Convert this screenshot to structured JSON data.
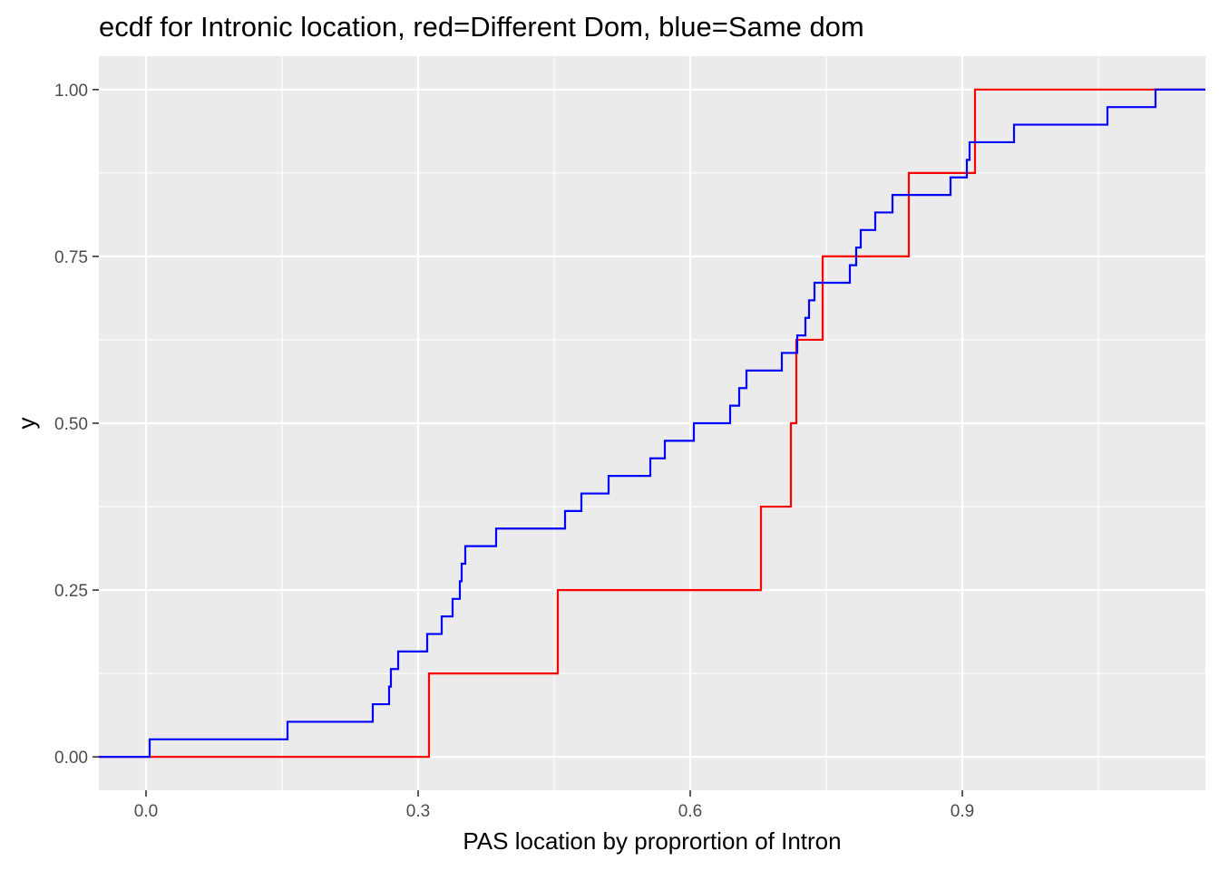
{
  "chart_data": {
    "type": "line",
    "step": true,
    "title": "ecdf for Intronic location, red=Different Dom, blue=Same dom",
    "xlabel": "PAS location by proprortion of Intron",
    "ylabel": "y",
    "xlim": [
      -0.052,
      1.168
    ],
    "ylim": [
      -0.05,
      1.05
    ],
    "x_ticks": [
      0.0,
      0.3,
      0.6,
      0.9
    ],
    "x_tick_labels": [
      "0.0",
      "0.3",
      "0.6",
      "0.9"
    ],
    "x_minor_ticks": [
      0.15,
      0.45,
      0.75,
      1.05
    ],
    "y_ticks": [
      0.0,
      0.25,
      0.5,
      0.75,
      1.0
    ],
    "y_tick_labels": [
      "0.00",
      "0.25",
      "0.50",
      "0.75",
      "1.00"
    ],
    "y_minor_ticks": [
      0.125,
      0.375,
      0.625,
      0.875
    ],
    "panel_color": "#ebebeb",
    "grid": true,
    "legend": "none",
    "series": [
      {
        "color": "#ff0000",
        "x": [
          0.312,
          0.454,
          0.678,
          0.711,
          0.717,
          0.746,
          0.841,
          0.914
        ],
        "y": [
          0.125,
          0.25,
          0.375,
          0.5,
          0.625,
          0.75,
          0.875,
          1.0
        ]
      },
      {
        "color": "#0000ff",
        "x": [
          0.004,
          0.156,
          0.25,
          0.268,
          0.27,
          0.278,
          0.31,
          0.326,
          0.338,
          0.346,
          0.348,
          0.352,
          0.386,
          0.462,
          0.48,
          0.51,
          0.556,
          0.572,
          0.604,
          0.644,
          0.654,
          0.662,
          0.701,
          0.718,
          0.727,
          0.731,
          0.737,
          0.776,
          0.783,
          0.788,
          0.804,
          0.823,
          0.887,
          0.905,
          0.908,
          0.957,
          1.06,
          1.113
        ],
        "y": [
          0.0263,
          0.0526,
          0.0789,
          0.1053,
          0.1316,
          0.1579,
          0.1842,
          0.2105,
          0.2368,
          0.2632,
          0.2895,
          0.3158,
          0.3421,
          0.3684,
          0.3947,
          0.4211,
          0.4474,
          0.4737,
          0.5,
          0.5263,
          0.5526,
          0.5789,
          0.6053,
          0.6316,
          0.6579,
          0.6842,
          0.7105,
          0.7368,
          0.7632,
          0.7895,
          0.8158,
          0.8421,
          0.8684,
          0.8947,
          0.9211,
          0.9474,
          0.9737,
          1.0
        ]
      }
    ]
  }
}
